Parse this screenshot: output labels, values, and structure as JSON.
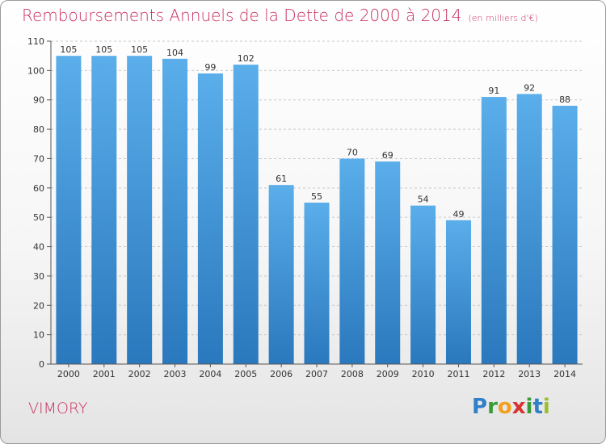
{
  "title": "Remboursements Annuels de la Dette de 2000 à 2014",
  "unit": "(en milliers d'€)",
  "commune": "VIMORY",
  "logo": [
    "P",
    "r",
    "o",
    "x",
    "i",
    "t",
    "i"
  ],
  "colors": {
    "bar_light": "#5aaeea",
    "bar_dark": "#2a78bd",
    "title": "#c8325f",
    "grid": "#c8c8c8"
  },
  "chart_data": {
    "type": "bar",
    "title": "Remboursements Annuels de la Dette de 2000 à 2014",
    "categories": [
      "2000",
      "2001",
      "2002",
      "2003",
      "2004",
      "2005",
      "2006",
      "2007",
      "2008",
      "2009",
      "2010",
      "2011",
      "2012",
      "2013",
      "2014"
    ],
    "values": [
      105,
      105,
      105,
      104,
      99,
      102,
      61,
      55,
      70,
      69,
      54,
      49,
      91,
      92,
      88
    ],
    "ylim": [
      0,
      110
    ],
    "yticks": [
      0,
      10,
      20,
      30,
      40,
      50,
      60,
      70,
      80,
      90,
      100,
      110
    ],
    "grid": true
  }
}
